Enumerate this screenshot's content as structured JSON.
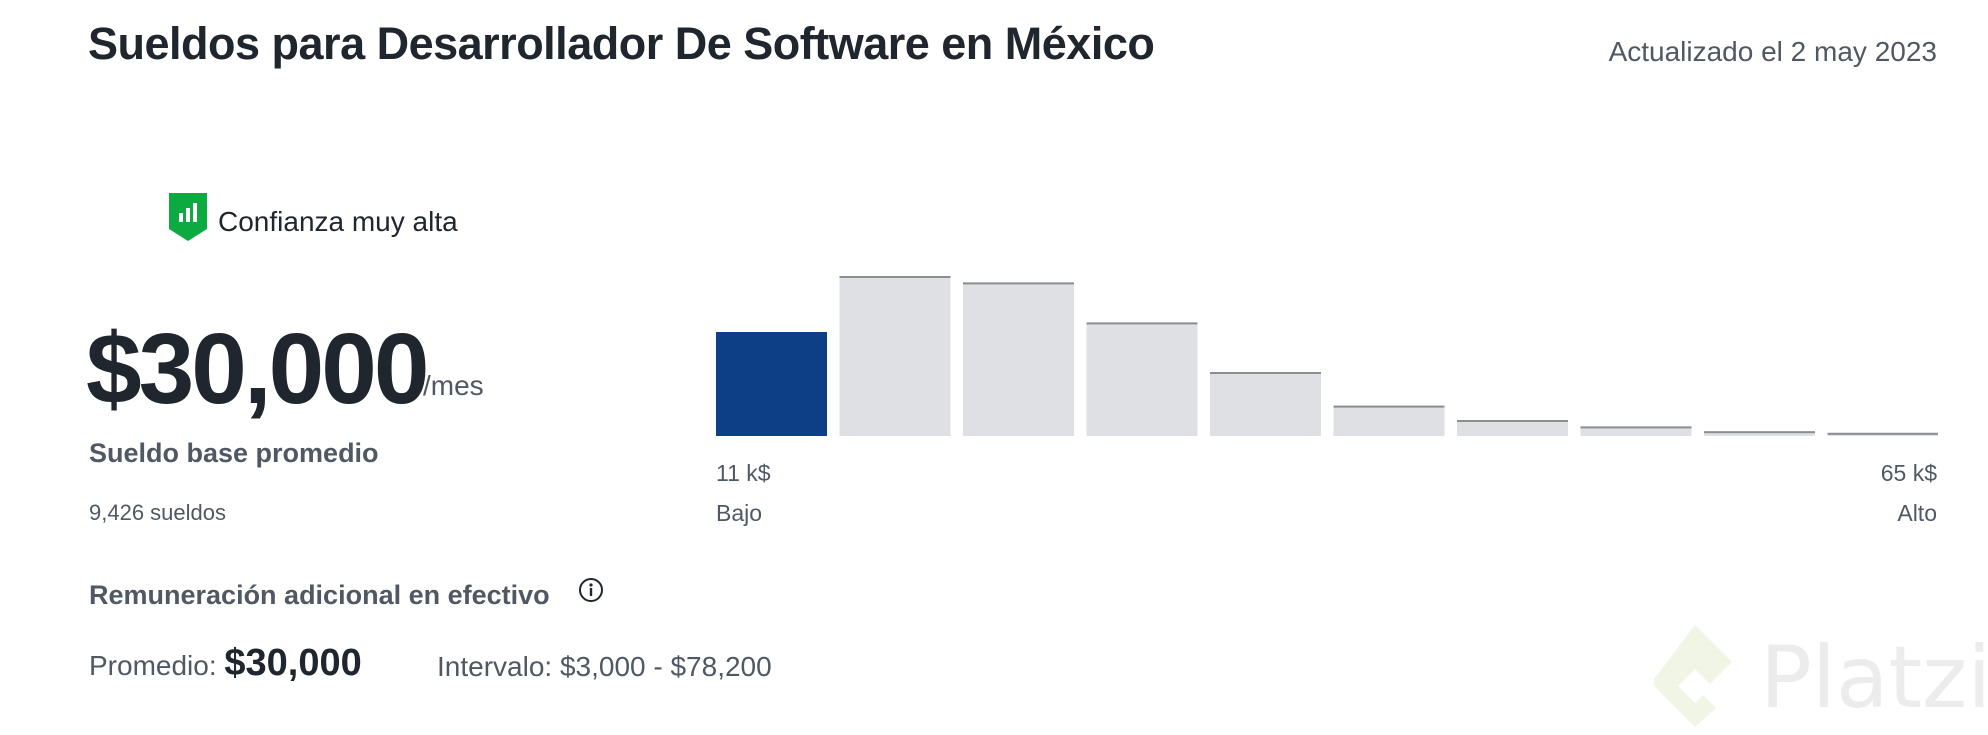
{
  "header": {
    "title": "Sueldos para Desarrollador De Software en México",
    "updated": "Actualizado el 2 may 2023"
  },
  "confidence": {
    "label": "Confianza muy alta",
    "color": "#0caa41"
  },
  "salary": {
    "amount": "$30,000",
    "period": "/mes",
    "label": "Sueldo base promedio",
    "count": "9,426 sueldos"
  },
  "chart_data": {
    "type": "bar",
    "values": [
      65,
      100,
      96,
      71,
      40,
      19,
      10,
      6,
      3,
      2
    ],
    "highlight_index": 0,
    "highlight_color": "#0d3f86",
    "bar_color": "#dfe0e3",
    "min_label": "11 k$",
    "max_label": "65 k$",
    "low_label": "Bajo",
    "high_label": "Alto"
  },
  "additional": {
    "title": "Remuneración adicional en efectivo",
    "average_label": "Promedio:",
    "average_value": "$30,000",
    "range": "Intervalo: $3,000 - $78,200"
  },
  "watermark": {
    "text": "Platzi"
  }
}
